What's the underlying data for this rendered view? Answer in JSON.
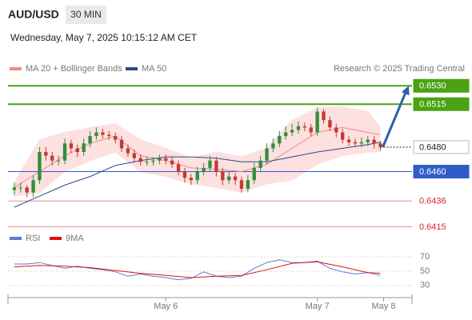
{
  "header": {
    "symbol": "AUD/USD",
    "timeframe": "30 MIN",
    "timestamp": "Wednesday, May 7, 2025 10:15:12 AM CET",
    "credit": "Research © 2025 Trading Central"
  },
  "chart_data": [
    {
      "type": "candlestick",
      "xlim": [
        -25,
        39
      ],
      "ylim": [
        0.6414,
        0.6538
      ],
      "up_color": "#2f8f3a",
      "down_color": "#c23b2e",
      "candles": {
        "x": [
          -24,
          -23,
          -22,
          -21,
          -20,
          -19,
          -18,
          -17,
          -16,
          -15,
          -14,
          -13,
          -12,
          -11,
          -10,
          -9,
          -8,
          -7,
          -6,
          -5,
          -4,
          -3,
          -2,
          -1,
          0,
          1,
          2,
          3,
          4,
          5,
          6,
          7,
          8,
          9,
          10,
          11,
          12,
          13,
          14,
          15,
          16,
          17,
          18,
          19,
          20,
          21,
          22,
          23,
          24,
          25,
          26,
          27,
          28,
          29,
          30,
          31,
          32,
          33,
          34
        ],
        "open": [
          0.6445,
          0.6447,
          0.6447,
          0.6443,
          0.6453,
          0.6476,
          0.6473,
          0.6469,
          0.6469,
          0.6483,
          0.6479,
          0.6476,
          0.6483,
          0.6489,
          0.6492,
          0.649,
          0.6489,
          0.6486,
          0.6479,
          0.6475,
          0.6471,
          0.6468,
          0.6468,
          0.6469,
          0.6471,
          0.6469,
          0.6466,
          0.646,
          0.6455,
          0.6453,
          0.646,
          0.6463,
          0.6469,
          0.646,
          0.6453,
          0.6456,
          0.6453,
          0.6446,
          0.6453,
          0.6463,
          0.6469,
          0.6479,
          0.6483,
          0.6489,
          0.6492,
          0.6494,
          0.6497,
          0.6496,
          0.6492,
          0.6509,
          0.6502,
          0.6496,
          0.6492,
          0.6486,
          0.6484,
          0.6483,
          0.6484,
          0.6486,
          0.6483
        ],
        "high": [
          0.6451,
          0.6451,
          0.6449,
          0.6457,
          0.648,
          0.648,
          0.6476,
          0.6473,
          0.6487,
          0.6486,
          0.6482,
          0.6487,
          0.6493,
          0.6496,
          0.6495,
          0.6493,
          0.6492,
          0.6489,
          0.6482,
          0.6478,
          0.6474,
          0.6472,
          0.6472,
          0.6474,
          0.6474,
          0.6472,
          0.6469,
          0.6463,
          0.6458,
          0.6464,
          0.6467,
          0.6473,
          0.6472,
          0.6463,
          0.646,
          0.6459,
          0.6456,
          0.6457,
          0.6467,
          0.6473,
          0.6483,
          0.6487,
          0.6493,
          0.6497,
          0.6499,
          0.6501,
          0.65,
          0.6499,
          0.6512,
          0.6511,
          0.6505,
          0.6499,
          0.6495,
          0.6489,
          0.6487,
          0.6488,
          0.6489,
          0.6489,
          0.6485
        ],
        "low": [
          0.6441,
          0.6443,
          0.6439,
          0.6439,
          0.645,
          0.6469,
          0.6465,
          0.6465,
          0.6466,
          0.6475,
          0.6472,
          0.6473,
          0.648,
          0.6486,
          0.6487,
          0.6486,
          0.6483,
          0.6476,
          0.6472,
          0.6468,
          0.6465,
          0.6465,
          0.6465,
          0.6466,
          0.6466,
          0.6463,
          0.6457,
          0.6451,
          0.6449,
          0.645,
          0.6457,
          0.646,
          0.6456,
          0.6449,
          0.645,
          0.6449,
          0.6443,
          0.6443,
          0.645,
          0.646,
          0.6466,
          0.6476,
          0.648,
          0.6486,
          0.6489,
          0.6491,
          0.6493,
          0.6489,
          0.6489,
          0.6499,
          0.6493,
          0.6488,
          0.6483,
          0.6481,
          0.648,
          0.648,
          0.6481,
          0.6479,
          0.6477
        ],
        "close": [
          0.6447,
          0.6447,
          0.6443,
          0.6453,
          0.6476,
          0.6473,
          0.6469,
          0.6469,
          0.6483,
          0.6479,
          0.6476,
          0.6483,
          0.6489,
          0.6492,
          0.649,
          0.6489,
          0.6486,
          0.6479,
          0.6475,
          0.6471,
          0.6468,
          0.6468,
          0.6469,
          0.6471,
          0.6469,
          0.6466,
          0.646,
          0.6455,
          0.6453,
          0.646,
          0.6463,
          0.6469,
          0.646,
          0.6453,
          0.6456,
          0.6453,
          0.6446,
          0.6453,
          0.6463,
          0.6469,
          0.6479,
          0.6483,
          0.6489,
          0.6492,
          0.6494,
          0.6497,
          0.6496,
          0.6492,
          0.6509,
          0.6502,
          0.6496,
          0.6492,
          0.6486,
          0.6484,
          0.6483,
          0.6484,
          0.6486,
          0.6483,
          0.648
        ]
      },
      "series": [
        {
          "name": "MA 20 + Bollinger Bands",
          "color": "#f08a8a",
          "band_color": "#fde0e0",
          "x": [
            -24,
            -20,
            -16,
            -12,
            -8,
            -4,
            0,
            4,
            8,
            12,
            16,
            20,
            24,
            28,
            32,
            34
          ],
          "values": [
            0.6447,
            0.646,
            0.6473,
            0.6483,
            0.6489,
            0.6473,
            0.6469,
            0.6463,
            0.6462,
            0.646,
            0.6466,
            0.6479,
            0.6492,
            0.6496,
            0.6492,
            0.649
          ],
          "upper": [
            0.6451,
            0.6486,
            0.6492,
            0.6496,
            0.6499,
            0.6486,
            0.6479,
            0.6471,
            0.6476,
            0.6472,
            0.6479,
            0.6502,
            0.6512,
            0.6513,
            0.6509,
            0.6496
          ],
          "lower": [
            0.644,
            0.6443,
            0.646,
            0.6469,
            0.6476,
            0.646,
            0.6456,
            0.645,
            0.6447,
            0.6443,
            0.645,
            0.6453,
            0.6466,
            0.6473,
            0.6476,
            0.6476
          ]
        },
        {
          "name": "MA 50",
          "color": "#2a4a8c",
          "x": [
            -24,
            -20,
            -16,
            -12,
            -8,
            -4,
            0,
            4,
            8,
            12,
            16,
            20,
            24,
            28,
            32,
            34
          ],
          "values": [
            0.6431,
            0.644,
            0.6449,
            0.6456,
            0.6465,
            0.6469,
            0.6472,
            0.6472,
            0.6471,
            0.6468,
            0.6468,
            0.6472,
            0.6476,
            0.6479,
            0.6482,
            0.6484
          ]
        }
      ],
      "levels": [
        {
          "value": 0.653,
          "label": "0.6530",
          "color": "#4aa312",
          "boxed": true
        },
        {
          "value": 0.6515,
          "label": "0.6515",
          "color": "#4aa312",
          "boxed": true
        },
        {
          "value": 0.648,
          "label": "0.6480",
          "color": "#888888",
          "boxed": true,
          "current": true
        },
        {
          "value": 0.646,
          "label": "0.6460",
          "color": "#2f5cc8",
          "boxed": true
        },
        {
          "value": 0.6436,
          "label": "0.6436",
          "color": "#f08a8a",
          "boxed": false
        },
        {
          "value": 0.6415,
          "label": "0.6415",
          "color": "#f08a8a",
          "boxed": false
        }
      ],
      "projection_color": "#2f5fa8"
    },
    {
      "type": "line",
      "xlim": [
        -25,
        39
      ],
      "ylim": [
        13,
        88
      ],
      "yticks": [
        70,
        50,
        30
      ],
      "xticks": [
        {
          "value": 0,
          "label": "May 6"
        },
        {
          "value": 24,
          "label": "May 7"
        },
        {
          "value": 34.5,
          "label": "May 8"
        }
      ],
      "series": [
        {
          "name": "RSI",
          "color": "#5b7bd5",
          "x": [
            -24,
            -22,
            -20,
            -18,
            -16,
            -14,
            -12,
            -10,
            -8,
            -6,
            -4,
            -2,
            0,
            2,
            4,
            6,
            8,
            10,
            12,
            14,
            16,
            18,
            20,
            22,
            24,
            26,
            28,
            30,
            32,
            34
          ],
          "values": [
            60,
            60,
            62,
            58,
            54,
            57,
            54,
            52,
            49,
            43,
            46,
            43,
            41,
            38,
            40,
            49,
            43,
            41,
            43,
            54,
            62,
            66,
            62,
            62,
            64,
            54,
            49,
            46,
            48,
            44
          ]
        },
        {
          "name": "9MA",
          "color": "#e01010",
          "x": [
            -24,
            -20,
            -16,
            -12,
            -8,
            -4,
            0,
            4,
            8,
            12,
            16,
            20,
            24,
            28,
            32,
            34
          ],
          "values": [
            56,
            58,
            57,
            55,
            51,
            47,
            44,
            41,
            43,
            44,
            52,
            61,
            63,
            56,
            48,
            47
          ]
        }
      ]
    }
  ]
}
